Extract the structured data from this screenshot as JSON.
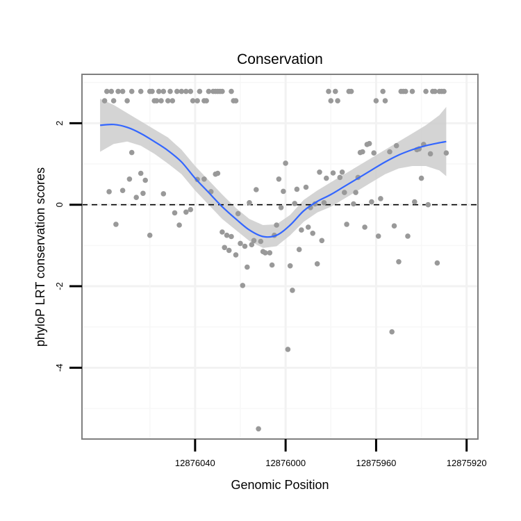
{
  "chart_data": {
    "type": "scatter",
    "title": "Conservation",
    "xlabel": "Genomic Position",
    "ylabel": "phyloP LRT conservation scores",
    "xlim": [
      12876090,
      12875915
    ],
    "ylim": [
      -5.75,
      3.2
    ],
    "x_reversed": true,
    "grid": true,
    "reference_line": {
      "y": 0,
      "style": "dashed"
    },
    "x_ticks": [
      12876040,
      12876000,
      12875960,
      12875920
    ],
    "x_tick_labels": [
      "12876040",
      "12876000",
      "12875960",
      "12875920"
    ],
    "y_ticks": [
      2,
      0,
      -2,
      -4
    ],
    "y_tick_labels": [
      "2",
      "0",
      "-2",
      "-4"
    ],
    "points": [
      {
        "x": 12876080,
        "y": 2.55
      },
      {
        "x": 12876079,
        "y": 2.78
      },
      {
        "x": 12876077,
        "y": 2.78
      },
      {
        "x": 12876076,
        "y": 2.55
      },
      {
        "x": 12876074,
        "y": 2.78
      },
      {
        "x": 12876072,
        "y": 2.78
      },
      {
        "x": 12876070,
        "y": 2.55
      },
      {
        "x": 12876068,
        "y": 2.78
      },
      {
        "x": 12876064,
        "y": 2.78
      },
      {
        "x": 12876060,
        "y": 2.78
      },
      {
        "x": 12876059,
        "y": 2.78
      },
      {
        "x": 12876058,
        "y": 2.55
      },
      {
        "x": 12876057,
        "y": 2.55
      },
      {
        "x": 12876056,
        "y": 2.78
      },
      {
        "x": 12876055,
        "y": 2.55
      },
      {
        "x": 12876054,
        "y": 2.78
      },
      {
        "x": 12876052,
        "y": 2.55
      },
      {
        "x": 12876051,
        "y": 2.78
      },
      {
        "x": 12876050,
        "y": 2.55
      },
      {
        "x": 12876048,
        "y": 2.78
      },
      {
        "x": 12876046,
        "y": 2.78
      },
      {
        "x": 12876044,
        "y": 2.78
      },
      {
        "x": 12876042,
        "y": 2.78
      },
      {
        "x": 12876041,
        "y": 2.55
      },
      {
        "x": 12876039,
        "y": 2.55
      },
      {
        "x": 12876038,
        "y": 2.78
      },
      {
        "x": 12876036,
        "y": 2.55
      },
      {
        "x": 12876035,
        "y": 2.55
      },
      {
        "x": 12876034,
        "y": 2.78
      },
      {
        "x": 12876032,
        "y": 2.78
      },
      {
        "x": 12876031,
        "y": 2.78
      },
      {
        "x": 12876030,
        "y": 2.78
      },
      {
        "x": 12876029,
        "y": 2.78
      },
      {
        "x": 12876028,
        "y": 2.78
      },
      {
        "x": 12876024,
        "y": 2.78
      },
      {
        "x": 12876023,
        "y": 2.55
      },
      {
        "x": 12876022,
        "y": 2.55
      },
      {
        "x": 12876078,
        "y": 0.32
      },
      {
        "x": 12876075,
        "y": -0.48
      },
      {
        "x": 12876072,
        "y": 0.35
      },
      {
        "x": 12876069,
        "y": 0.63
      },
      {
        "x": 12876068,
        "y": 1.28
      },
      {
        "x": 12876066,
        "y": 0.18
      },
      {
        "x": 12876064,
        "y": 0.77
      },
      {
        "x": 12876063,
        "y": 0.28
      },
      {
        "x": 12876062,
        "y": 0.6
      },
      {
        "x": 12876060,
        "y": -0.75
      },
      {
        "x": 12876054,
        "y": 0.27
      },
      {
        "x": 12876049,
        "y": -0.2
      },
      {
        "x": 12876047,
        "y": -0.5
      },
      {
        "x": 12876044,
        "y": -0.18
      },
      {
        "x": 12876042,
        "y": -0.12
      },
      {
        "x": 12876039,
        "y": 0.62
      },
      {
        "x": 12876036,
        "y": 0.63
      },
      {
        "x": 12876033,
        "y": 0.32
      },
      {
        "x": 12876031,
        "y": 0.75
      },
      {
        "x": 12876030,
        "y": 0.77
      },
      {
        "x": 12876028,
        "y": -0.67
      },
      {
        "x": 12876027,
        "y": -1.05
      },
      {
        "x": 12876026,
        "y": -0.75
      },
      {
        "x": 12876025,
        "y": -1.12
      },
      {
        "x": 12876024,
        "y": -0.78
      },
      {
        "x": 12876022,
        "y": -1.23
      },
      {
        "x": 12876021,
        "y": -0.22
      },
      {
        "x": 12876020,
        "y": -0.95
      },
      {
        "x": 12876019,
        "y": -1.98
      },
      {
        "x": 12876018,
        "y": -1.02
      },
      {
        "x": 12876017,
        "y": -1.53
      },
      {
        "x": 12876016,
        "y": 0.05
      },
      {
        "x": 12876015,
        "y": -0.98
      },
      {
        "x": 12876014,
        "y": -0.88
      },
      {
        "x": 12876013,
        "y": 0.37
      },
      {
        "x": 12876012,
        "y": -5.5
      },
      {
        "x": 12876011,
        "y": -0.9
      },
      {
        "x": 12876010,
        "y": -1.15
      },
      {
        "x": 12876009,
        "y": -1.18
      },
      {
        "x": 12876007,
        "y": -1.18
      },
      {
        "x": 12876006,
        "y": -1.48
      },
      {
        "x": 12876005,
        "y": -0.75
      },
      {
        "x": 12876004,
        "y": -0.5
      },
      {
        "x": 12876003,
        "y": 0.63
      },
      {
        "x": 12876002,
        "y": -0.07
      },
      {
        "x": 12876001,
        "y": 0.33
      },
      {
        "x": 12876000,
        "y": 1.02
      },
      {
        "x": 12875999,
        "y": -3.55
      },
      {
        "x": 12875998,
        "y": -1.5
      },
      {
        "x": 12875997,
        "y": -2.1
      },
      {
        "x": 12875996,
        "y": 0.03
      },
      {
        "x": 12875995,
        "y": 0.38
      },
      {
        "x": 12875994,
        "y": -1.1
      },
      {
        "x": 12875993,
        "y": -0.62
      },
      {
        "x": 12875991,
        "y": 0.43
      },
      {
        "x": 12875990,
        "y": -0.55
      },
      {
        "x": 12875989,
        "y": -0.07
      },
      {
        "x": 12875988,
        "y": -0.7
      },
      {
        "x": 12875987,
        "y": 0.02
      },
      {
        "x": 12875986,
        "y": -1.45
      },
      {
        "x": 12875985,
        "y": 0.8
      },
      {
        "x": 12875984,
        "y": -0.88
      },
      {
        "x": 12875983,
        "y": 0.05
      },
      {
        "x": 12875982,
        "y": 0.65
      },
      {
        "x": 12875981,
        "y": 2.78
      },
      {
        "x": 12875980,
        "y": 2.55
      },
      {
        "x": 12875979,
        "y": 0.78
      },
      {
        "x": 12875978,
        "y": 2.78
      },
      {
        "x": 12875977,
        "y": 2.55
      },
      {
        "x": 12875976,
        "y": 0.67
      },
      {
        "x": 12875975,
        "y": 0.8
      },
      {
        "x": 12875974,
        "y": 0.3
      },
      {
        "x": 12875973,
        "y": -0.48
      },
      {
        "x": 12875972,
        "y": 2.78
      },
      {
        "x": 12875971,
        "y": 2.78
      },
      {
        "x": 12875970,
        "y": 0.02
      },
      {
        "x": 12875969,
        "y": 0.3
      },
      {
        "x": 12875968,
        "y": 0.67
      },
      {
        "x": 12875967,
        "y": 1.28
      },
      {
        "x": 12875966,
        "y": 1.3
      },
      {
        "x": 12875965,
        "y": -0.55
      },
      {
        "x": 12875964,
        "y": 1.48
      },
      {
        "x": 12875963,
        "y": 1.5
      },
      {
        "x": 12875962,
        "y": 0.07
      },
      {
        "x": 12875961,
        "y": 1.27
      },
      {
        "x": 12875960,
        "y": 2.55
      },
      {
        "x": 12875959,
        "y": -0.77
      },
      {
        "x": 12875958,
        "y": 0.15
      },
      {
        "x": 12875957,
        "y": 2.78
      },
      {
        "x": 12875956,
        "y": 2.55
      },
      {
        "x": 12875954,
        "y": 1.3
      },
      {
        "x": 12875953,
        "y": -3.12
      },
      {
        "x": 12875952,
        "y": -0.52
      },
      {
        "x": 12875951,
        "y": 1.45
      },
      {
        "x": 12875950,
        "y": -1.4
      },
      {
        "x": 12875949,
        "y": 2.78
      },
      {
        "x": 12875948,
        "y": 2.78
      },
      {
        "x": 12875947,
        "y": 2.78
      },
      {
        "x": 12875946,
        "y": -0.77
      },
      {
        "x": 12875944,
        "y": 2.78
      },
      {
        "x": 12875943,
        "y": 0.07
      },
      {
        "x": 12875942,
        "y": 1.35
      },
      {
        "x": 12875941,
        "y": 1.37
      },
      {
        "x": 12875940,
        "y": 0.65
      },
      {
        "x": 12875939,
        "y": 1.48
      },
      {
        "x": 12875938,
        "y": 2.78
      },
      {
        "x": 12875937,
        "y": 0.0
      },
      {
        "x": 12875936,
        "y": 1.25
      },
      {
        "x": 12875935,
        "y": 2.78
      },
      {
        "x": 12875934,
        "y": 2.78
      },
      {
        "x": 12875933,
        "y": -1.43
      },
      {
        "x": 12875932,
        "y": 2.78
      },
      {
        "x": 12875931,
        "y": 2.78
      },
      {
        "x": 12875930,
        "y": 2.78
      },
      {
        "x": 12875929,
        "y": 1.27
      }
    ],
    "smooth": {
      "method": "loess",
      "color": "#3366ff",
      "fit": [
        {
          "x": 12876082,
          "y": 1.95
        },
        {
          "x": 12876076,
          "y": 1.97
        },
        {
          "x": 12876070,
          "y": 1.9
        },
        {
          "x": 12876064,
          "y": 1.75
        },
        {
          "x": 12876058,
          "y": 1.55
        },
        {
          "x": 12876052,
          "y": 1.33
        },
        {
          "x": 12876046,
          "y": 1.05
        },
        {
          "x": 12876040,
          "y": 0.65
        },
        {
          "x": 12876034,
          "y": 0.3
        },
        {
          "x": 12876028,
          "y": -0.05
        },
        {
          "x": 12876022,
          "y": -0.35
        },
        {
          "x": 12876016,
          "y": -0.62
        },
        {
          "x": 12876010,
          "y": -0.78
        },
        {
          "x": 12876004,
          "y": -0.75
        },
        {
          "x": 12875998,
          "y": -0.5
        },
        {
          "x": 12875992,
          "y": -0.15
        },
        {
          "x": 12875986,
          "y": 0.08
        },
        {
          "x": 12875980,
          "y": 0.25
        },
        {
          "x": 12875974,
          "y": 0.45
        },
        {
          "x": 12875968,
          "y": 0.65
        },
        {
          "x": 12875962,
          "y": 0.85
        },
        {
          "x": 12875956,
          "y": 1.05
        },
        {
          "x": 12875950,
          "y": 1.22
        },
        {
          "x": 12875944,
          "y": 1.35
        },
        {
          "x": 12875938,
          "y": 1.45
        },
        {
          "x": 12875932,
          "y": 1.52
        },
        {
          "x": 12875929,
          "y": 1.55
        }
      ],
      "ci_upper": [
        2.6,
        2.45,
        2.25,
        2.05,
        1.85,
        1.65,
        1.35,
        0.95,
        0.6,
        0.25,
        -0.08,
        -0.35,
        -0.5,
        -0.48,
        -0.25,
        0.12,
        0.35,
        0.55,
        0.75,
        0.95,
        1.15,
        1.35,
        1.55,
        1.75,
        1.95,
        2.2,
        2.4
      ],
      "ci_lower": [
        1.3,
        1.49,
        1.55,
        1.45,
        1.25,
        1.01,
        0.75,
        0.35,
        0.0,
        -0.35,
        -0.62,
        -0.89,
        -1.06,
        -1.02,
        -0.75,
        -0.42,
        -0.19,
        -0.05,
        0.15,
        0.35,
        0.55,
        0.75,
        0.89,
        0.95,
        0.95,
        0.84,
        0.7
      ]
    }
  }
}
